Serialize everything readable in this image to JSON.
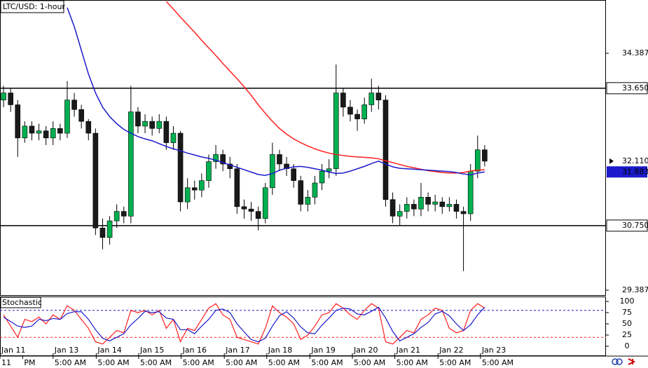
{
  "chart_data": [
    {
      "type": "candlestick",
      "title": "LTC/USD: 1-hour",
      "up_color": "#00b050",
      "down_color": "#1a1a1a",
      "open": [
        33.4,
        33.55,
        33.3,
        32.6,
        32.85,
        32.7,
        32.75,
        32.6,
        32.8,
        32.7,
        33.4,
        33.2,
        32.95,
        32.7,
        30.7,
        30.5,
        30.85,
        31.05,
        30.95,
        33.15,
        32.85,
        32.95,
        32.8,
        32.95,
        32.5,
        32.7,
        31.25,
        31.55,
        31.5,
        31.7,
        32.1,
        32.25,
        32.05,
        31.95,
        31.15,
        31.1,
        31.05,
        30.9,
        31.55,
        32.25,
        32.05,
        31.95,
        31.7,
        31.2,
        31.35,
        31.65,
        31.9,
        31.95,
        33.55,
        33.25,
        33.1,
        33.0,
        33.3,
        33.55,
        33.4,
        31.3,
        30.95,
        31.05,
        31.2,
        31.1,
        31.35,
        31.2,
        31.25,
        31.15,
        31.2,
        31.05,
        31.0,
        31.9,
        32.35
      ],
      "high": [
        33.7,
        33.65,
        33.4,
        32.95,
        32.95,
        32.9,
        32.85,
        32.95,
        32.9,
        33.8,
        33.55,
        33.3,
        33.0,
        32.8,
        30.9,
        30.95,
        31.2,
        31.15,
        33.7,
        33.25,
        33.1,
        33.05,
        33.1,
        33.05,
        32.85,
        32.75,
        31.75,
        31.7,
        31.85,
        32.25,
        32.45,
        32.35,
        32.2,
        32.05,
        31.3,
        31.25,
        31.15,
        31.65,
        32.5,
        32.35,
        32.2,
        32.05,
        31.8,
        31.5,
        31.8,
        32.05,
        32.15,
        34.15,
        33.65,
        33.4,
        33.2,
        33.45,
        33.85,
        33.7,
        33.5,
        31.45,
        31.2,
        31.35,
        31.3,
        31.65,
        31.45,
        31.4,
        31.35,
        31.35,
        31.3,
        31.15,
        32.05,
        32.65,
        32.45
      ],
      "low": [
        33.25,
        33.15,
        32.2,
        32.5,
        32.55,
        32.55,
        32.45,
        32.45,
        32.55,
        32.6,
        33.05,
        32.8,
        32.55,
        30.55,
        30.25,
        30.35,
        30.7,
        30.8,
        30.8,
        32.7,
        32.7,
        32.65,
        32.7,
        32.35,
        32.35,
        31.05,
        31.1,
        31.3,
        31.35,
        31.55,
        31.95,
        31.9,
        31.75,
        31.0,
        30.9,
        30.85,
        30.65,
        30.8,
        31.4,
        31.9,
        31.8,
        31.55,
        31.05,
        31.05,
        31.2,
        31.5,
        31.75,
        31.8,
        33.05,
        32.95,
        32.75,
        32.9,
        33.15,
        33.2,
        31.15,
        30.8,
        30.75,
        30.9,
        30.95,
        30.95,
        31.05,
        31.05,
        31.0,
        31.05,
        30.9,
        29.79,
        30.85,
        31.75,
        32.0
      ],
      "close": [
        33.55,
        33.3,
        32.6,
        32.85,
        32.7,
        32.75,
        32.6,
        32.8,
        32.7,
        33.4,
        33.2,
        32.95,
        32.7,
        30.7,
        30.5,
        30.85,
        31.05,
        30.95,
        33.15,
        32.85,
        32.95,
        32.8,
        32.95,
        32.5,
        32.7,
        31.25,
        31.55,
        31.5,
        31.7,
        32.1,
        32.25,
        32.05,
        31.95,
        31.15,
        31.1,
        31.05,
        30.9,
        31.55,
        32.25,
        32.05,
        31.95,
        31.7,
        31.2,
        31.35,
        31.65,
        31.9,
        31.95,
        33.55,
        33.25,
        33.1,
        33.0,
        33.3,
        33.55,
        33.4,
        31.3,
        30.95,
        31.05,
        31.2,
        31.1,
        31.35,
        31.2,
        31.25,
        31.15,
        31.2,
        31.05,
        31.0,
        31.9,
        32.35,
        32.11
      ],
      "overlays": [
        {
          "color": "#ff2020",
          "values": [
            null,
            null,
            null,
            null,
            null,
            null,
            null,
            null,
            null,
            null,
            null,
            null,
            null,
            null,
            null,
            null,
            null,
            null,
            null,
            null,
            null,
            null,
            null,
            35.48,
            35.32,
            35.15,
            34.99,
            34.83,
            34.66,
            34.5,
            34.34,
            34.17,
            34.01,
            33.85,
            33.68,
            33.5,
            33.3,
            33.12,
            32.95,
            32.8,
            32.68,
            32.58,
            32.5,
            32.43,
            32.37,
            32.32,
            32.28,
            32.25,
            32.23,
            32.21,
            32.2,
            32.19,
            32.18,
            32.16,
            32.12,
            32.08,
            32.04,
            32.0,
            31.97,
            31.94,
            31.91,
            31.89,
            31.87,
            31.86,
            31.86,
            31.87,
            31.9,
            31.92,
            31.93
          ]
        },
        {
          "color": "#1a1acc",
          "values": [
            null,
            null,
            null,
            null,
            null,
            null,
            null,
            null,
            null,
            35.35,
            34.95,
            34.45,
            33.95,
            33.55,
            33.25,
            33.05,
            32.9,
            32.78,
            32.7,
            32.63,
            32.58,
            32.54,
            32.48,
            32.42,
            32.37,
            32.33,
            32.28,
            32.24,
            32.2,
            32.17,
            32.13,
            32.08,
            32.03,
            31.98,
            31.93,
            31.88,
            31.83,
            31.81,
            31.85,
            31.92,
            31.96,
            31.99,
            32.0,
            31.98,
            31.95,
            31.92,
            31.88,
            31.85,
            31.86,
            31.9,
            31.95,
            32.0,
            32.06,
            32.11,
            32.05,
            31.99,
            31.96,
            31.95,
            31.94,
            31.93,
            31.92,
            31.91,
            31.9,
            31.89,
            31.87,
            31.84,
            31.82,
            31.86,
            31.883
          ]
        }
      ],
      "hlines": [
        {
          "value": 33.65,
          "label": "33.650"
        },
        {
          "value": 30.75,
          "label": "30.750"
        }
      ],
      "current_price": {
        "value": 32.11,
        "label": "32.110"
      },
      "ma_price": 31.883,
      "ylim": [
        29.269,
        35.511
      ],
      "yticks": [
        34.387,
        29.387
      ],
      "xlim": [
        -0.5,
        85.14
      ],
      "xticks": [
        {
          "value": -0.5,
          "label": "Jan 11"
        },
        {
          "value": 7.0,
          "label": "Jan 13"
        },
        {
          "value": 13.1,
          "label": "Jan 14"
        },
        {
          "value": 19.1,
          "label": "Jan 15"
        },
        {
          "value": 25.1,
          "label": "Jan 16"
        },
        {
          "value": 31.2,
          "label": "Jan 17"
        },
        {
          "value": 37.2,
          "label": "Jan 18"
        },
        {
          "value": 43.3,
          "label": "Jan 19"
        },
        {
          "value": 49.3,
          "label": "Jan 20"
        },
        {
          "value": 55.3,
          "label": "Jan 21"
        },
        {
          "value": 61.4,
          "label": "Jan 22"
        },
        {
          "value": 67.4,
          "label": "Jan 23"
        }
      ],
      "xticks2": [
        {
          "value": -0.5,
          "label": "11"
        },
        {
          "value": 2.7,
          "label": "PM"
        },
        {
          "value": 7.0,
          "label": "5:00 AM"
        },
        {
          "value": 13.1,
          "label": "5:00 AM"
        },
        {
          "value": 19.1,
          "label": "5:00 AM"
        },
        {
          "value": 25.1,
          "label": "5:00 AM"
        },
        {
          "value": 31.2,
          "label": "5:00 AM"
        },
        {
          "value": 37.2,
          "label": "5:00 AM"
        },
        {
          "value": 43.3,
          "label": "5:00 AM"
        },
        {
          "value": 49.3,
          "label": "5:00 AM"
        },
        {
          "value": 55.3,
          "label": "5:00 AM"
        },
        {
          "value": 61.4,
          "label": "5:00 AM"
        },
        {
          "value": 67.4,
          "label": "5:00 AM"
        }
      ]
    },
    {
      "type": "line",
      "title": "Stochastic",
      "series": [
        {
          "color": "#ff2020",
          "values": [
            70,
            45,
            20,
            60,
            55,
            65,
            50,
            70,
            60,
            90,
            80,
            60,
            40,
            10,
            5,
            20,
            35,
            30,
            80,
            75,
            80,
            70,
            80,
            40,
            60,
            10,
            40,
            35,
            60,
            85,
            95,
            70,
            60,
            20,
            15,
            10,
            5,
            40,
            90,
            75,
            65,
            50,
            15,
            25,
            45,
            70,
            75,
            95,
            85,
            70,
            60,
            80,
            95,
            85,
            10,
            5,
            20,
            35,
            30,
            60,
            70,
            85,
            80,
            40,
            30,
            35,
            80,
            95,
            85
          ]
        },
        {
          "color": "#1a1acc",
          "values": [
            65,
            55,
            45,
            42,
            45,
            60,
            57,
            62,
            60,
            73,
            77,
            77,
            60,
            37,
            18,
            12,
            20,
            28,
            48,
            62,
            78,
            75,
            77,
            63,
            60,
            37,
            37,
            28,
            45,
            60,
            80,
            83,
            75,
            50,
            32,
            15,
            10,
            18,
            45,
            68,
            77,
            63,
            43,
            30,
            28,
            47,
            63,
            80,
            85,
            83,
            72,
            70,
            78,
            87,
            63,
            33,
            12,
            20,
            28,
            42,
            53,
            72,
            78,
            68,
            50,
            35,
            48,
            70,
            87
          ]
        }
      ],
      "levels": [
        {
          "value": 80,
          "color": "#1a1acc"
        },
        {
          "value": 20,
          "color": "#ff2020"
        }
      ],
      "ylim": [
        -20.3,
        107.8
      ],
      "yticks": [
        100,
        75,
        50,
        25,
        0
      ],
      "xlim": [
        -0.5,
        85.14
      ]
    }
  ]
}
